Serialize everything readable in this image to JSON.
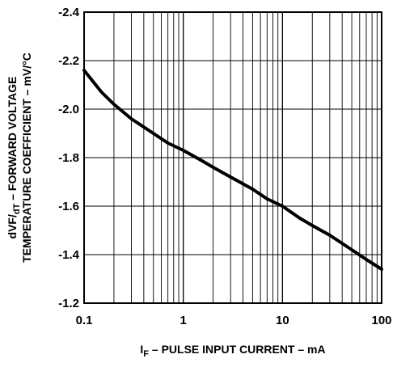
{
  "chart_data": {
    "type": "line",
    "title": "",
    "xlabel": {
      "symbol": "I",
      "subscript": "F",
      "text": " – PULSE INPUT CURRENT – mA"
    },
    "ylabel": {
      "line1_main": "dVF/",
      "line1_sub": "dT",
      "line1_rest": " – FORWARD VOLTAGE",
      "line2": "TEMPERATURE COEFFICIENT – mV/°C"
    },
    "x_scale": "log",
    "xlim": [
      0.1,
      100
    ],
    "ylim": [
      -1.2,
      -2.4
    ],
    "y_axis_inverted": true,
    "x_ticks": [
      0.1,
      1,
      10,
      100
    ],
    "x_tick_labels": [
      "0.1",
      "1",
      "10",
      "100"
    ],
    "y_ticks": [
      -2.4,
      -2.2,
      -2.0,
      -1.8,
      -1.6,
      -1.4,
      -1.2
    ],
    "y_tick_labels": [
      "-2.4",
      "-2.2",
      "-2.0",
      "-1.8",
      "-1.6",
      "-1.4",
      "-1.2"
    ],
    "grid": true,
    "series": [
      {
        "color": "#000000",
        "x": [
          0.1,
          0.15,
          0.2,
          0.3,
          0.5,
          0.7,
          1,
          1.5,
          2,
          3,
          5,
          7,
          10,
          15,
          20,
          30,
          50,
          70,
          100
        ],
        "y": [
          -2.16,
          -2.07,
          -2.02,
          -1.96,
          -1.9,
          -1.86,
          -1.83,
          -1.79,
          -1.76,
          -1.72,
          -1.67,
          -1.63,
          -1.6,
          -1.55,
          -1.52,
          -1.48,
          -1.42,
          -1.38,
          -1.34
        ]
      }
    ]
  }
}
